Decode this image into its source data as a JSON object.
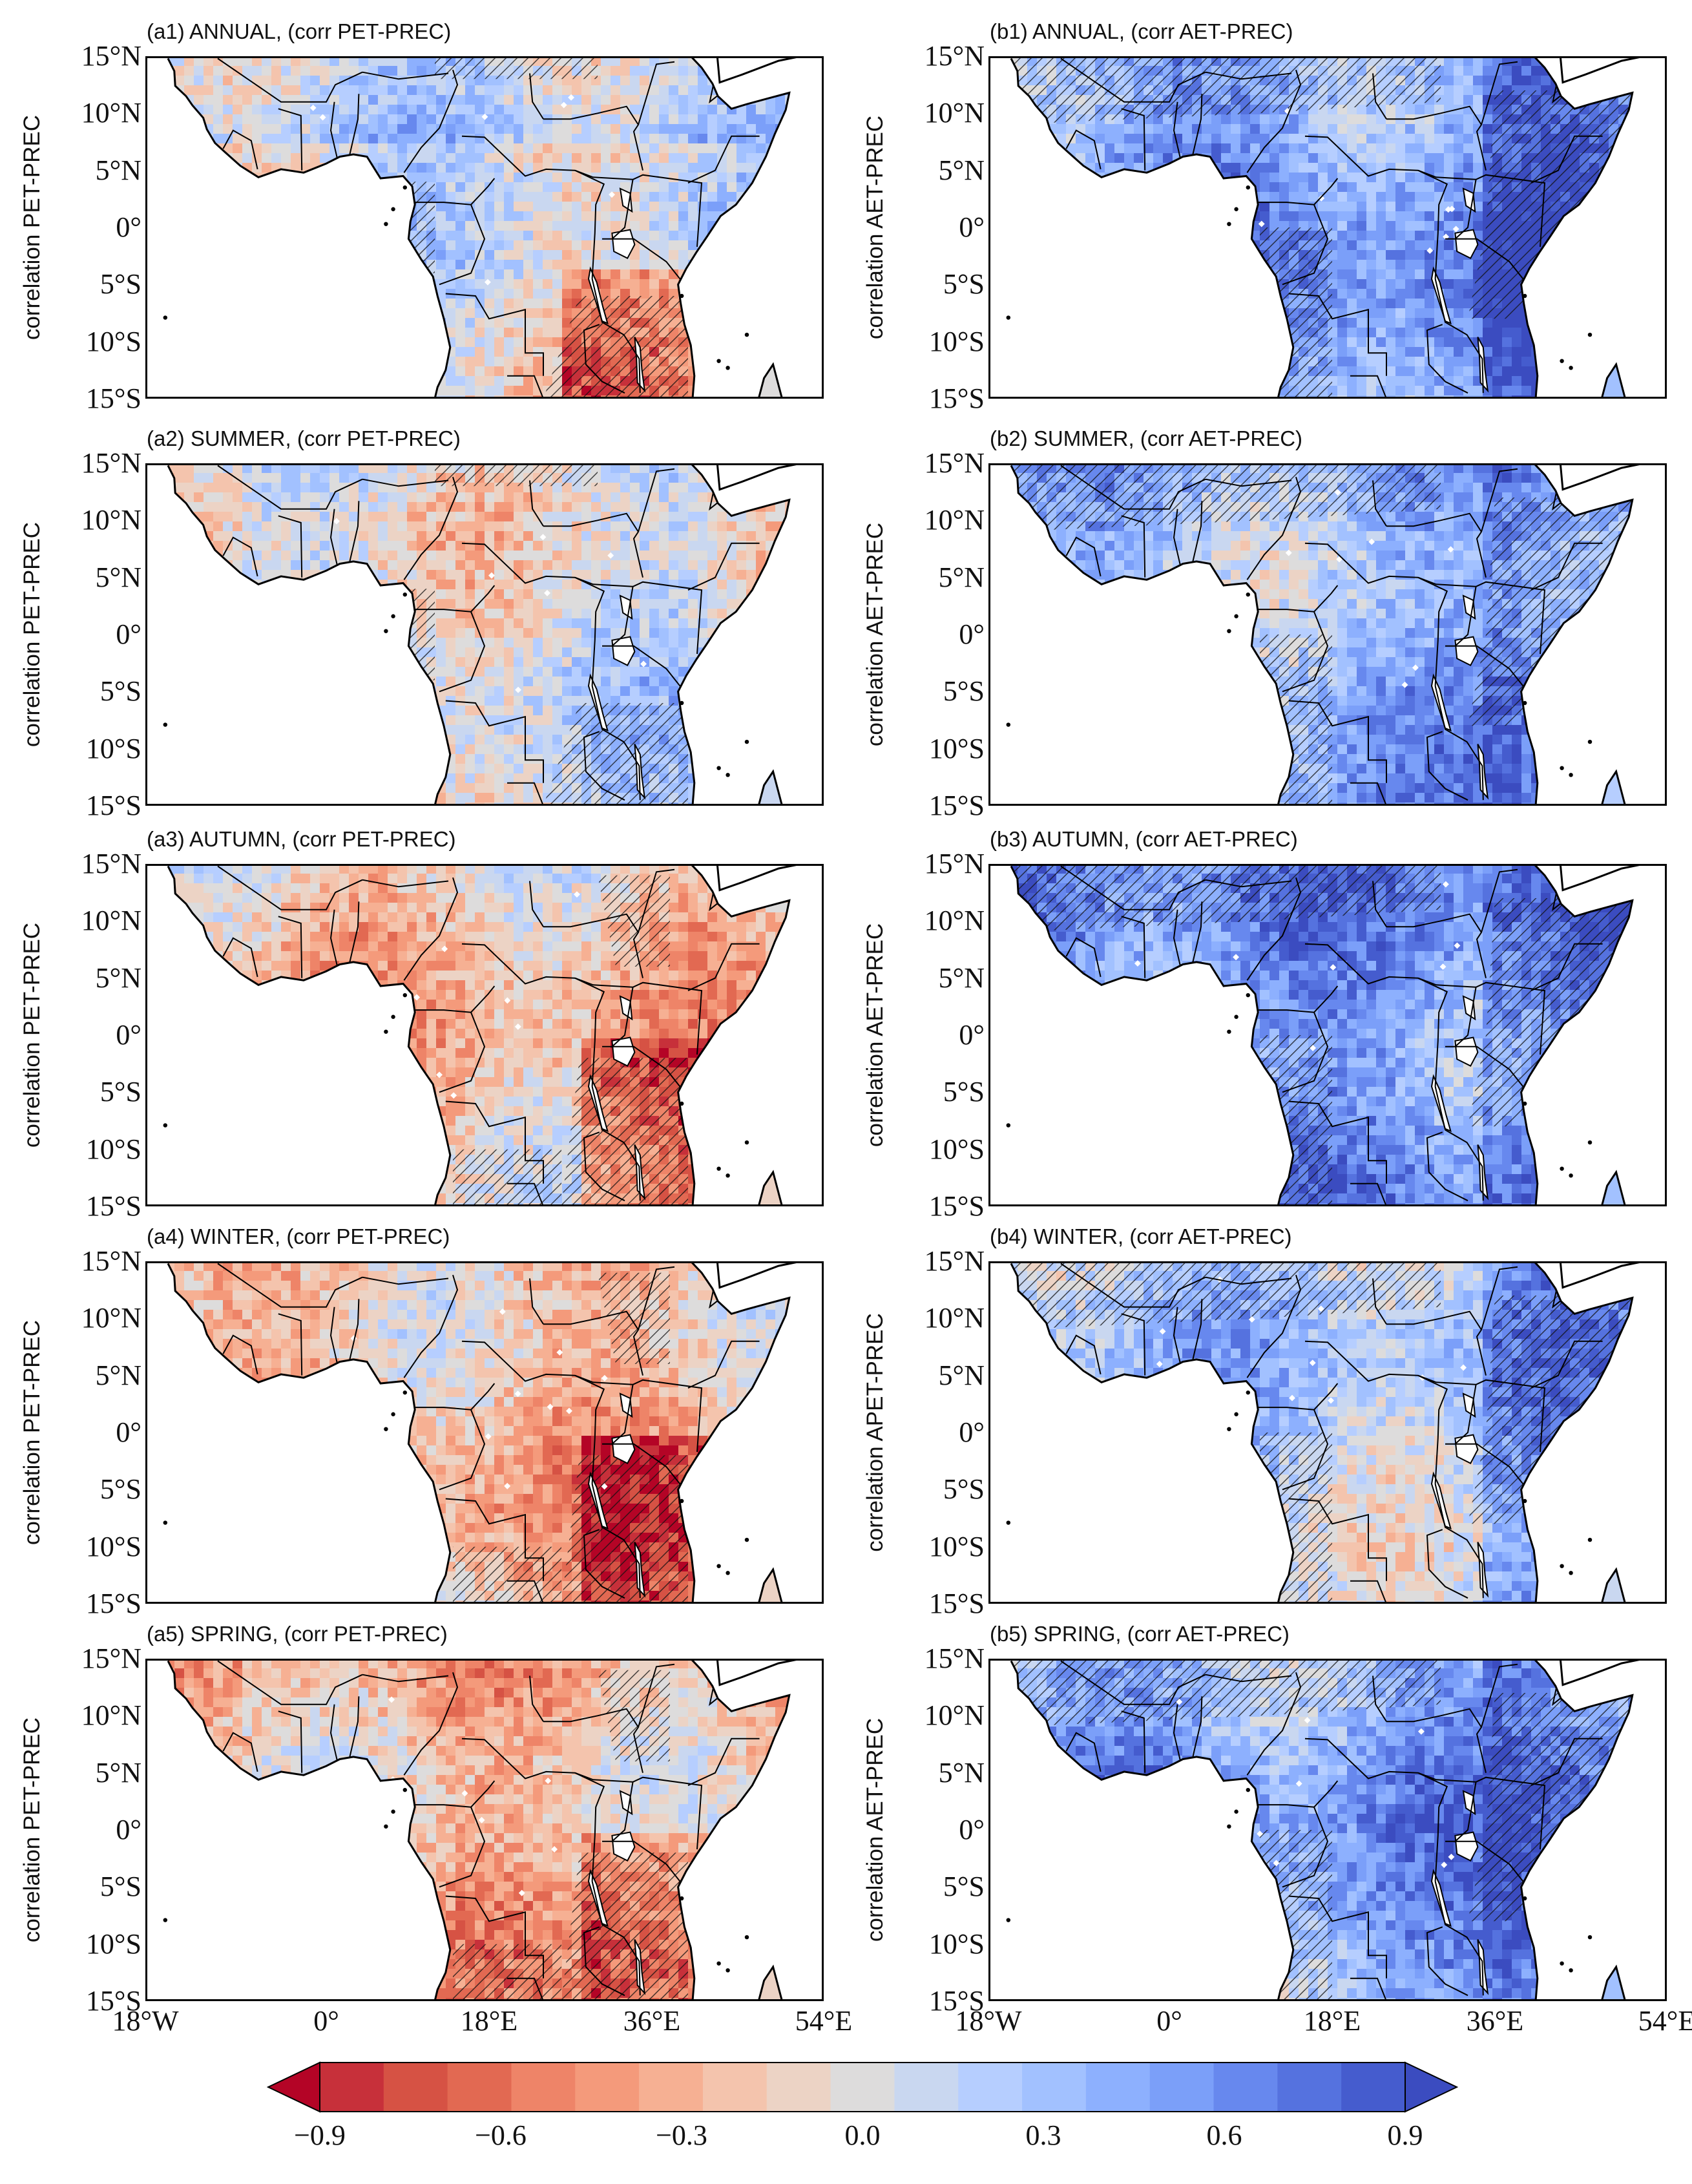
{
  "figure": {
    "lat_ticks": [
      "15°N",
      "10°N",
      "5°N",
      "0°",
      "5°S",
      "10°S",
      "15°S"
    ],
    "lon_ticks": [
      "18°W",
      "0°",
      "18°E",
      "36°E",
      "54°E"
    ],
    "panels": [
      {
        "id": "a1",
        "title": "(a1) ANNUAL,  (corr PET-PREC)",
        "ylabel": "correlation  PET-PREC",
        "bias": -0.05,
        "hatch": "mixed"
      },
      {
        "id": "b1",
        "title": "(b1) ANNUAL, (corr AET-PREC)",
        "ylabel": "correlation  AET-PREC",
        "bias": 0.45,
        "hatch": "blue"
      },
      {
        "id": "a2",
        "title": "(a2) SUMMER,  (corr PET-PREC)",
        "ylabel": "correlation  PET-PREC",
        "bias": 0.0,
        "hatch": "mixed"
      },
      {
        "id": "b2",
        "title": "(b2) SUMMER, (corr AET-PREC)",
        "ylabel": "correlation  AET-PREC",
        "bias": 0.3,
        "hatch": "blue"
      },
      {
        "id": "a3",
        "title": "(a3) AUTUMN,  (corr PET-PREC)",
        "ylabel": "correlation  PET-PREC",
        "bias": -0.25,
        "hatch": "red"
      },
      {
        "id": "b3",
        "title": "(b3) AUTUMN, (corr AET-PREC)",
        "ylabel": "correlation  AET-PREC",
        "bias": 0.45,
        "hatch": "blue"
      },
      {
        "id": "a4",
        "title": "(a4) WINTER,  (corr PET-PREC)",
        "ylabel": "correlation  PET-PREC",
        "bias": -0.3,
        "hatch": "red"
      },
      {
        "id": "b4",
        "title": "(b4) WINTER, (corr AET-PREC)",
        "ylabel": "correlation  APET-PREC",
        "bias": 0.15,
        "hatch": "blue"
      },
      {
        "id": "a5",
        "title": "(a5) SPRING,  (corr PET-PREC)",
        "ylabel": "correlation  PET-PREC",
        "bias": -0.3,
        "hatch": "red"
      },
      {
        "id": "b5",
        "title": "(b5) SPRING, (corr AET-PREC)",
        "ylabel": "correlation  AET-PREC",
        "bias": 0.4,
        "hatch": "blue"
      }
    ]
  },
  "colorbar": {
    "levels": [
      -1.0,
      -0.9,
      -0.8,
      -0.7,
      -0.6,
      -0.5,
      -0.4,
      -0.3,
      -0.2,
      -0.1,
      0.0,
      0.1,
      0.2,
      0.3,
      0.4,
      0.5,
      0.6,
      0.7,
      0.8,
      0.9,
      1.0
    ],
    "colors": [
      "#b40426",
      "#c7303a",
      "#d65244",
      "#e26952",
      "#ee8468",
      "#f49a7b",
      "#f6b093",
      "#f4c4ad",
      "#ecd3c5",
      "#dddcdc",
      "#c9d7f0",
      "#b6ceff",
      "#a2c1ff",
      "#8db0fe",
      "#7b9ff9",
      "#6788ee",
      "#5572df",
      "#455cce",
      "#3b4cc0"
    ],
    "tick_labels": [
      "−0.9",
      "−0.6",
      "−0.3",
      "0.0",
      "0.3",
      "0.6",
      "0.9"
    ],
    "tick_values": [
      -0.9,
      -0.6,
      -0.3,
      0.0,
      0.3,
      0.6,
      0.9
    ]
  }
}
